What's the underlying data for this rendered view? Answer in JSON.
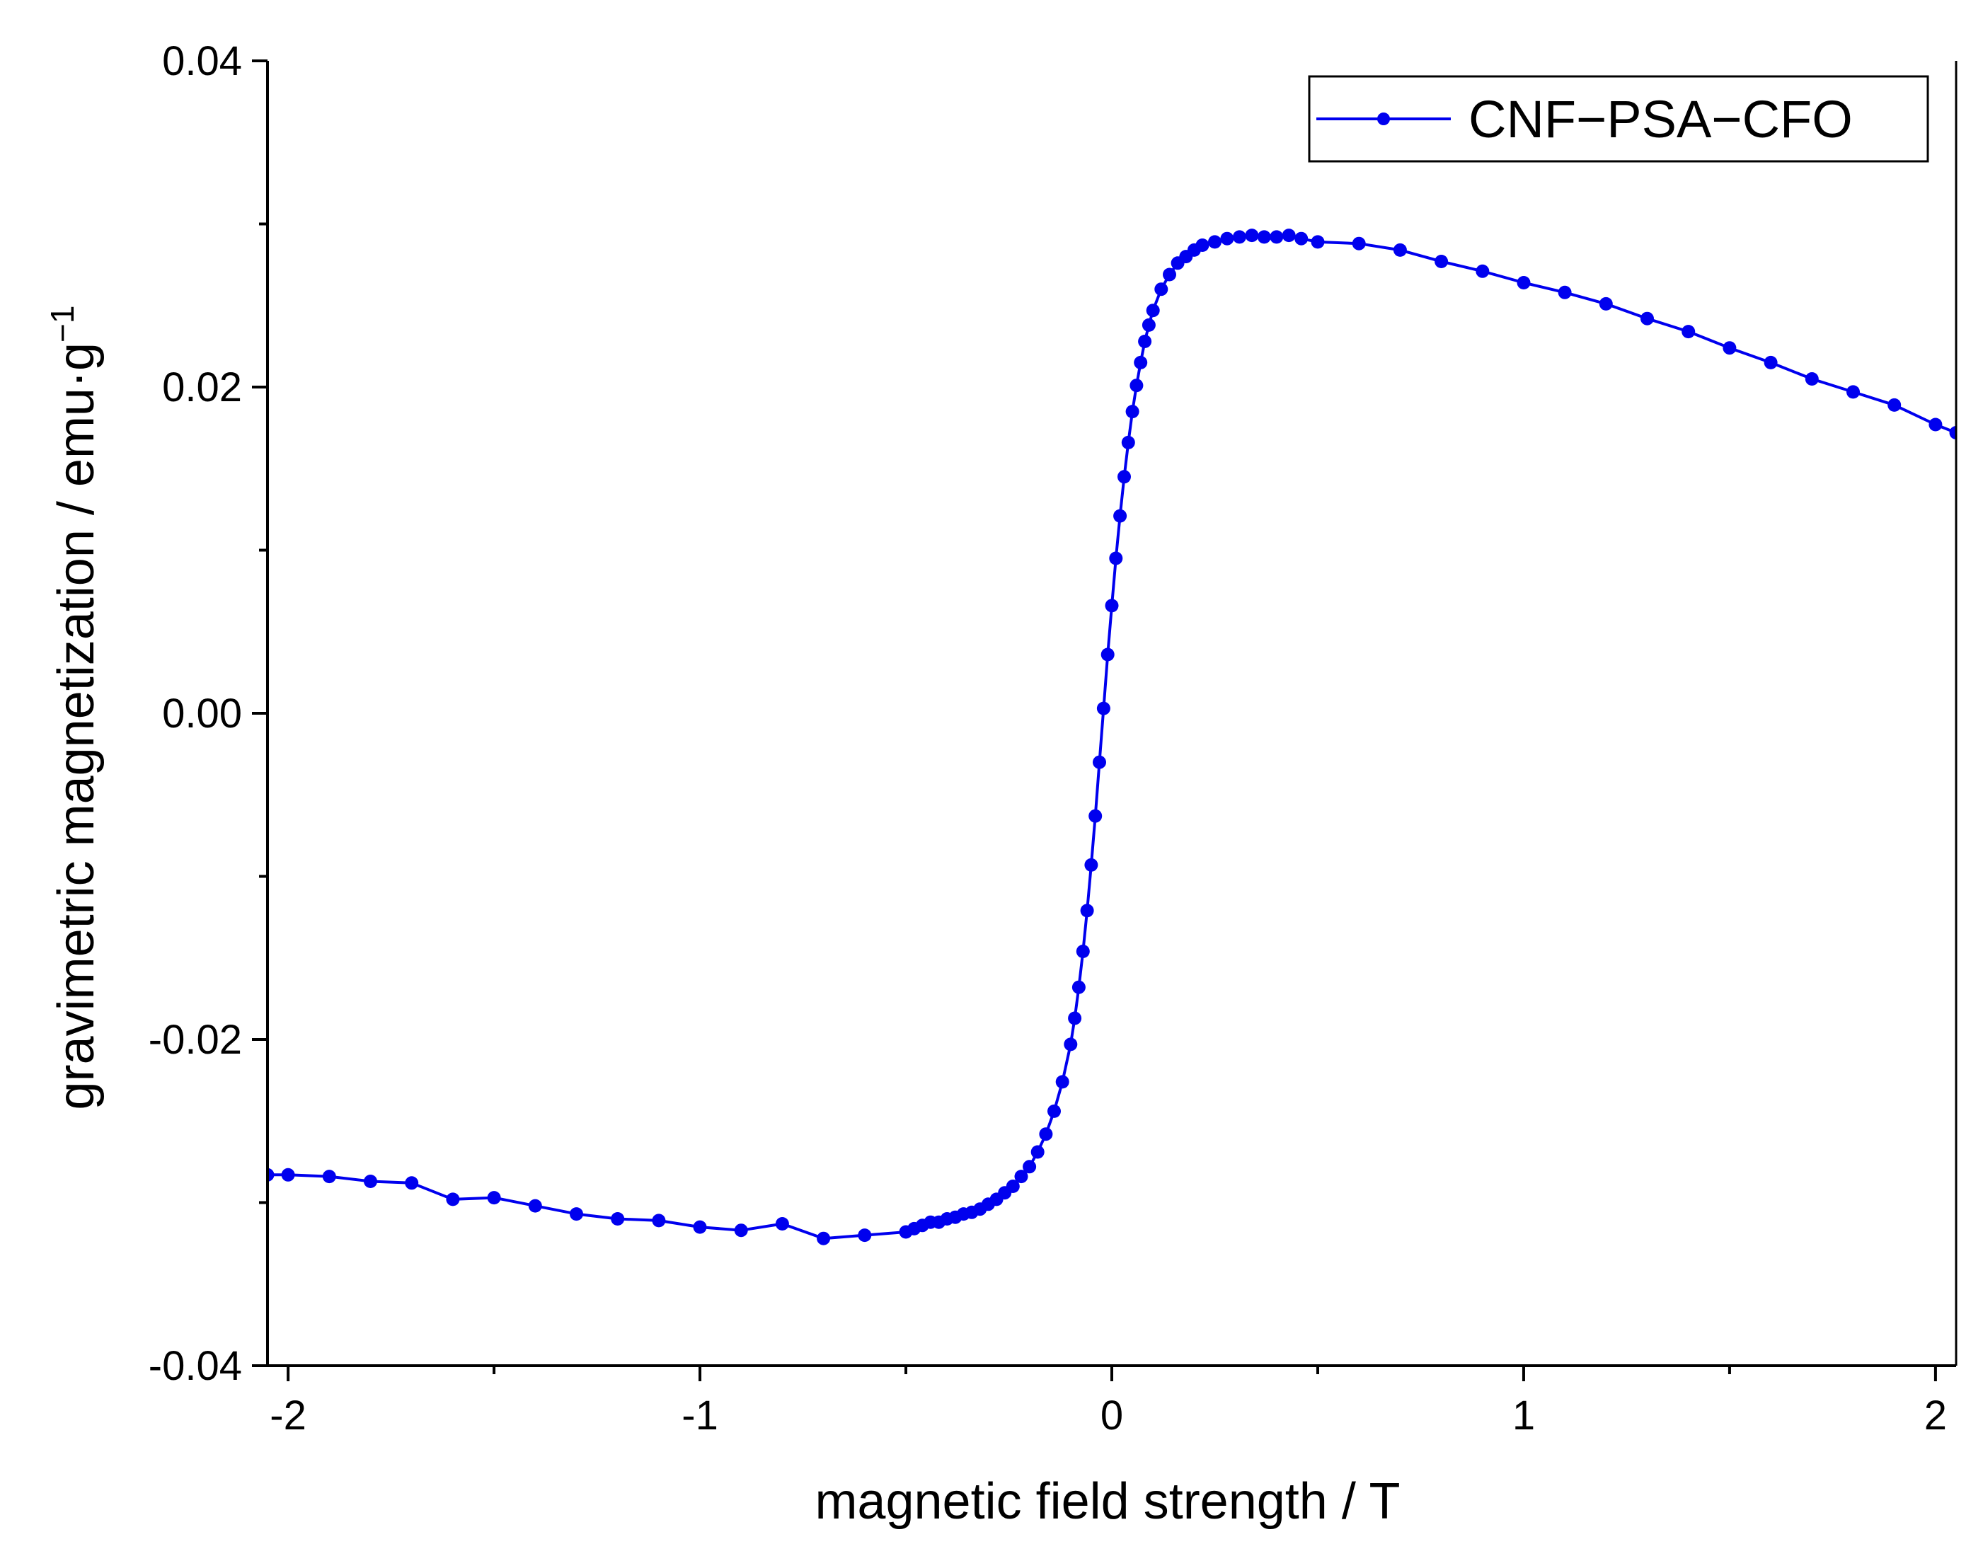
{
  "chart_data": {
    "type": "line",
    "title": "",
    "xlabel": "magnetic field strength / T",
    "ylabel_main": "gravimetric magnetization / emu·g",
    "ylabel_superscript": "−1",
    "xlim": [
      -2.05,
      2.05
    ],
    "ylim": [
      -0.04,
      0.04
    ],
    "x_ticks": [
      -2,
      -1,
      0,
      1,
      2
    ],
    "x_tick_labels": [
      "-2",
      "-1",
      "0",
      "1",
      "2"
    ],
    "x_minor_ticks": [
      -1.5,
      -0.5,
      0.5,
      1.5
    ],
    "y_ticks": [
      -0.04,
      -0.02,
      0.0,
      0.02,
      0.04
    ],
    "y_tick_labels": [
      "-0.04",
      "-0.02",
      "0.00",
      "0.02",
      "0.04"
    ],
    "y_minor_ticks": [
      -0.03,
      -0.01,
      0.01,
      0.03
    ],
    "grid": false,
    "legend_position": "top-right",
    "colors": {
      "series": "#0000ee",
      "axis": "#000000",
      "background": "#ffffff"
    },
    "series": [
      {
        "name": "CNF−PSA−CFO",
        "marker": "circle",
        "x": [
          -2.05,
          -2.0,
          -1.9,
          -1.8,
          -1.7,
          -1.6,
          -1.5,
          -1.4,
          -1.3,
          -1.2,
          -1.1,
          -1.0,
          -0.9,
          -0.8,
          -0.7,
          -0.6,
          -0.5,
          -0.48,
          -0.46,
          -0.44,
          -0.42,
          -0.4,
          -0.38,
          -0.36,
          -0.34,
          -0.32,
          -0.3,
          -0.28,
          -0.26,
          -0.24,
          -0.22,
          -0.2,
          -0.18,
          -0.16,
          -0.14,
          -0.12,
          -0.1,
          -0.09,
          -0.08,
          -0.07,
          -0.06,
          -0.05,
          -0.04,
          -0.03,
          -0.02,
          -0.01,
          0.0,
          0.01,
          0.02,
          0.03,
          0.04,
          0.05,
          0.06,
          0.07,
          0.08,
          0.09,
          0.1,
          0.12,
          0.14,
          0.16,
          0.18,
          0.2,
          0.22,
          0.25,
          0.28,
          0.31,
          0.34,
          0.37,
          0.4,
          0.43,
          0.46,
          0.5,
          0.6,
          0.7,
          0.8,
          0.9,
          1.0,
          1.1,
          1.2,
          1.3,
          1.4,
          1.5,
          1.6,
          1.7,
          1.8,
          1.9,
          2.0,
          2.05
        ],
        "values": [
          -0.0283,
          -0.0283,
          -0.0284,
          -0.0287,
          -0.0288,
          -0.0298,
          -0.0297,
          -0.0302,
          -0.0307,
          -0.031,
          -0.0311,
          -0.0315,
          -0.0317,
          -0.0313,
          -0.0322,
          -0.032,
          -0.0318,
          -0.0316,
          -0.0314,
          -0.0312,
          -0.0312,
          -0.031,
          -0.0309,
          -0.0307,
          -0.0306,
          -0.0304,
          -0.0301,
          -0.0298,
          -0.0294,
          -0.029,
          -0.0284,
          -0.0278,
          -0.0269,
          -0.0258,
          -0.0244,
          -0.0226,
          -0.0203,
          -0.0187,
          -0.0168,
          -0.0146,
          -0.0121,
          -0.0093,
          -0.0063,
          -0.003,
          0.0003,
          0.0036,
          0.0066,
          0.0095,
          0.0121,
          0.0145,
          0.0166,
          0.0185,
          0.0201,
          0.0215,
          0.0228,
          0.0238,
          0.0247,
          0.026,
          0.0269,
          0.0276,
          0.028,
          0.0284,
          0.0287,
          0.0289,
          0.0291,
          0.0292,
          0.0293,
          0.0292,
          0.0292,
          0.0293,
          0.0291,
          0.0289,
          0.0288,
          0.0284,
          0.0277,
          0.0271,
          0.0264,
          0.0258,
          0.0251,
          0.0242,
          0.0234,
          0.0224,
          0.0215,
          0.0205,
          0.0197,
          0.0189,
          0.0177,
          0.0172
        ]
      }
    ]
  }
}
